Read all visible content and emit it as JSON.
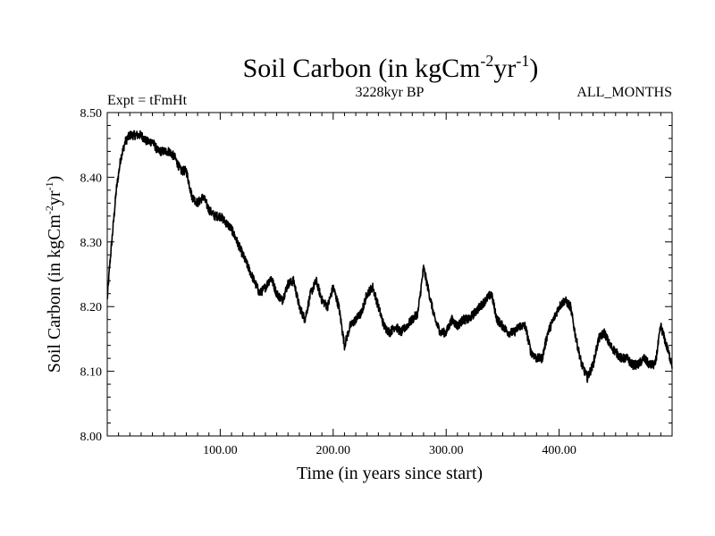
{
  "chart_data": {
    "type": "line",
    "title": {
      "main": "Soil Carbon (in kgCm",
      "sup1": "-2",
      "mid": "yr",
      "sup2": "-1",
      "end": ")"
    },
    "subtitle_left": "Expt = tFmHt",
    "subtitle_center": "3228kyr BP",
    "subtitle_right": "ALL_MONTHS",
    "xlabel": "Time (in years since start)",
    "ylabel": {
      "main": "Soil Carbon (in kgCm",
      "sup1": "-2",
      "mid": "yr",
      "sup2": "-1",
      "end": ")"
    },
    "xlim": [
      0,
      500
    ],
    "ylim": [
      8.0,
      8.5
    ],
    "x_ticks": [
      {
        "value": 100,
        "label": "100.00"
      },
      {
        "value": 200,
        "label": "200.00"
      },
      {
        "value": 300,
        "label": "300.00"
      },
      {
        "value": 400,
        "label": "400.00"
      }
    ],
    "y_ticks": [
      {
        "value": 8.0,
        "label": "8.00"
      },
      {
        "value": 8.1,
        "label": "8.10"
      },
      {
        "value": 8.2,
        "label": "8.20"
      },
      {
        "value": 8.3,
        "label": "8.30"
      },
      {
        "value": 8.4,
        "label": "8.40"
      },
      {
        "value": 8.5,
        "label": "8.50"
      }
    ],
    "series": [
      {
        "name": "Soil Carbon",
        "color": "#000000",
        "noise": 0.007,
        "x": [
          0,
          2,
          5,
          8,
          12,
          16,
          20,
          25,
          30,
          35,
          40,
          45,
          50,
          55,
          60,
          65,
          70,
          75,
          80,
          85,
          90,
          95,
          100,
          105,
          110,
          115,
          120,
          125,
          130,
          135,
          140,
          145,
          150,
          155,
          160,
          165,
          170,
          175,
          180,
          185,
          190,
          195,
          200,
          205,
          210,
          215,
          220,
          225,
          230,
          235,
          240,
          245,
          250,
          255,
          260,
          265,
          270,
          275,
          280,
          285,
          290,
          295,
          300,
          305,
          310,
          315,
          320,
          325,
          330,
          335,
          340,
          345,
          350,
          355,
          360,
          365,
          370,
          375,
          380,
          385,
          390,
          395,
          400,
          405,
          410,
          415,
          420,
          425,
          430,
          435,
          440,
          445,
          450,
          455,
          460,
          465,
          470,
          475,
          480,
          485,
          490,
          495,
          500
        ],
        "values": [
          8.21,
          8.26,
          8.32,
          8.38,
          8.43,
          8.455,
          8.465,
          8.465,
          8.465,
          8.455,
          8.455,
          8.44,
          8.44,
          8.44,
          8.43,
          8.41,
          8.41,
          8.37,
          8.36,
          8.37,
          8.35,
          8.34,
          8.34,
          8.33,
          8.32,
          8.3,
          8.28,
          8.26,
          8.24,
          8.22,
          8.23,
          8.245,
          8.22,
          8.21,
          8.235,
          8.24,
          8.2,
          8.18,
          8.22,
          8.24,
          8.21,
          8.2,
          8.23,
          8.2,
          8.14,
          8.17,
          8.18,
          8.19,
          8.22,
          8.23,
          8.2,
          8.17,
          8.16,
          8.17,
          8.16,
          8.17,
          8.18,
          8.19,
          8.26,
          8.22,
          8.18,
          8.16,
          8.16,
          8.18,
          8.17,
          8.18,
          8.18,
          8.19,
          8.2,
          8.21,
          8.22,
          8.18,
          8.17,
          8.16,
          8.16,
          8.17,
          8.17,
          8.13,
          8.12,
          8.12,
          8.16,
          8.18,
          8.2,
          8.21,
          8.2,
          8.15,
          8.11,
          8.09,
          8.11,
          8.15,
          8.16,
          8.14,
          8.13,
          8.12,
          8.12,
          8.11,
          8.11,
          8.12,
          8.11,
          8.11,
          8.17,
          8.14,
          8.11
        ]
      }
    ]
  }
}
